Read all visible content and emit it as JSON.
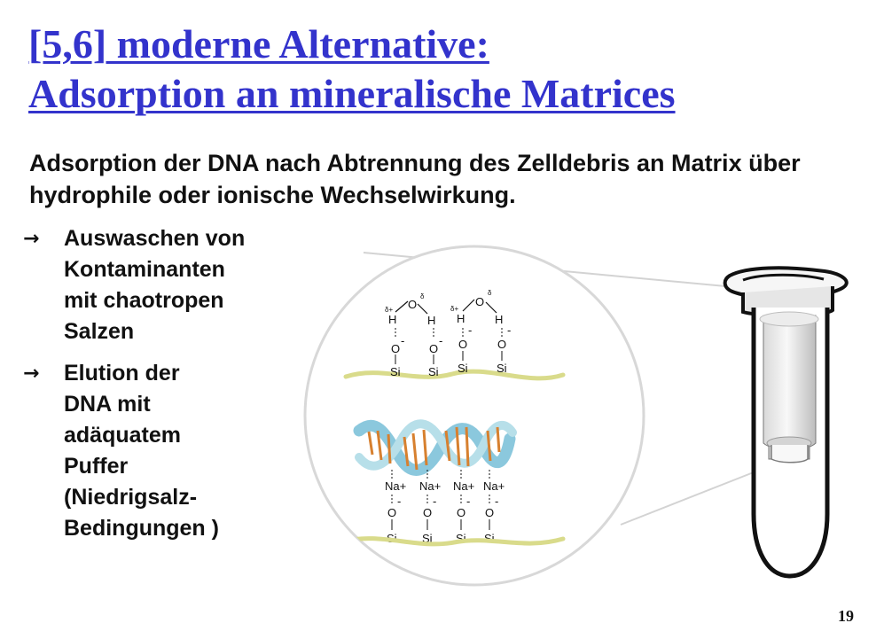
{
  "slide": {
    "title_line_1": "[5,6] moderne Alternative:",
    "title_line_2": "Adsorption an mineralische Matrices",
    "intro": "Adsorption der DNA nach Abtrennung des Zelldebris an Matrix über hydrophile oder ionische Wechselwirkung.",
    "bullet_symbol": "→",
    "bullets": [
      "Auswaschen von\nKontaminanten\nmit chaotropen\nSalzen",
      "Elution der\nDNA mit\nadäquatem\nPuffer\n(Niedrigsalz-\nBedingungen )"
    ],
    "page_number": "19"
  },
  "illustration": {
    "top_panel": {
      "oxygen": "O",
      "hydrogen": "H",
      "silicon": "Si",
      "minus": "-",
      "delta": "δ",
      "delta_plus": "δ+",
      "delta_minus": "δ"
    },
    "bottom_panel": {
      "sodium": "Na+",
      "oxygen": "O",
      "silicon": "Si",
      "minus": "-"
    }
  },
  "colors": {
    "title": "#3333cc",
    "text": "#111111",
    "matrix_line": "#d9db8b",
    "helix_blue": "#8bc8dd",
    "helix_orange": "#d7802f",
    "circle_outline": "#d8d8d8"
  }
}
